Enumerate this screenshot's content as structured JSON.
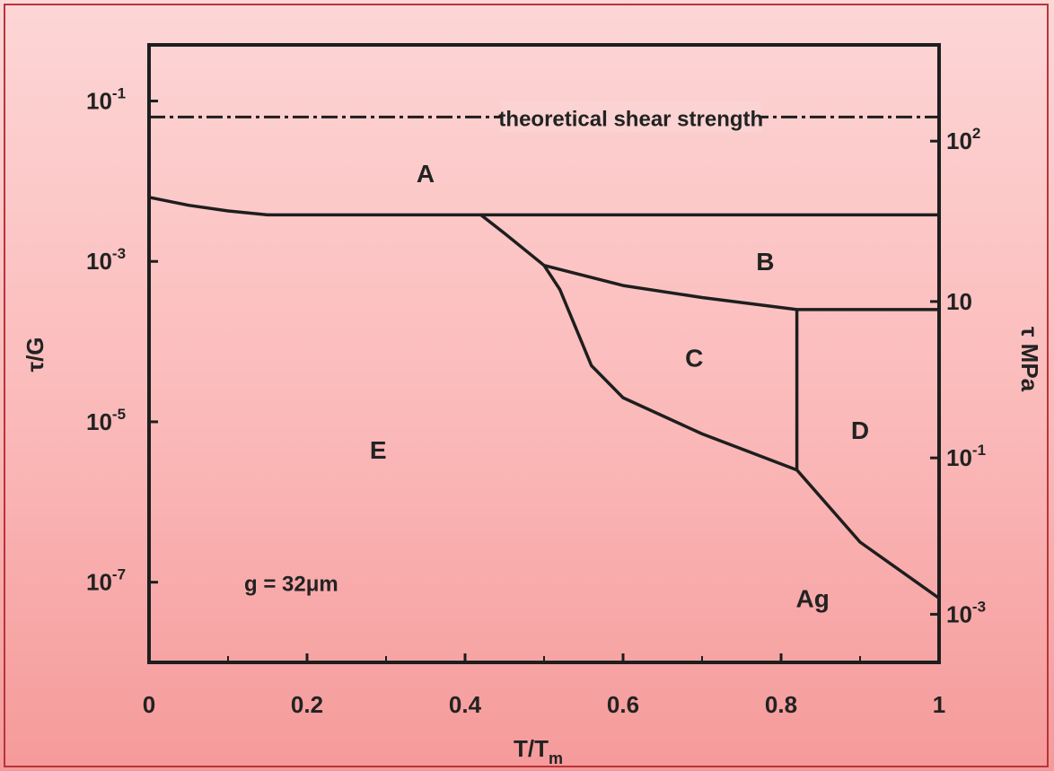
{
  "chart_data": {
    "type": "line",
    "title": "",
    "xlabel": "T/T",
    "xlabel_sub": "m",
    "ylabel_left": "τ/G",
    "ylabel_right": "τ MPa",
    "xlim": [
      0,
      1
    ],
    "ylim_log10": [
      -8,
      -0.3
    ],
    "x_ticks": [
      {
        "value": 0,
        "label": "0"
      },
      {
        "value": 0.2,
        "label": "0.2"
      },
      {
        "value": 0.4,
        "label": "0.4"
      },
      {
        "value": 0.6,
        "label": "0.6"
      },
      {
        "value": 0.8,
        "label": "0.8"
      },
      {
        "value": 1.0,
        "label": "1"
      }
    ],
    "left_ticks": [
      {
        "log10": -1,
        "base": "10",
        "exp": "-1"
      },
      {
        "log10": -3,
        "base": "10",
        "exp": "-3"
      },
      {
        "log10": -5,
        "base": "10",
        "exp": "-5"
      },
      {
        "log10": -7,
        "base": "10",
        "exp": "-7"
      }
    ],
    "right_ticks": [
      {
        "log10": -1.5,
        "base": "10",
        "exp": "2"
      },
      {
        "log10": -3.5,
        "base": "",
        "exp": "",
        "label": "10"
      },
      {
        "log10": -5.45,
        "base": "10",
        "exp": "-1"
      },
      {
        "log10": -7.4,
        "base": "10",
        "exp": "-3"
      }
    ],
    "series": [
      {
        "role": "theoretical-strength",
        "style": "dash-dot",
        "points": [
          [
            0,
            -1.2
          ],
          [
            1,
            -1.2
          ]
        ]
      },
      {
        "role": "boundary-A-lower",
        "style": "solid",
        "points": [
          [
            0,
            -2.2
          ],
          [
            0.05,
            -2.3
          ],
          [
            0.1,
            -2.37
          ],
          [
            0.15,
            -2.42
          ],
          [
            0.2,
            -2.42
          ],
          [
            1,
            -2.42
          ]
        ]
      },
      {
        "role": "boundary-B-lower",
        "style": "solid",
        "points": [
          [
            0.42,
            -2.42
          ],
          [
            0.45,
            -2.65
          ],
          [
            0.5,
            -3.05
          ],
          [
            0.6,
            -3.3
          ],
          [
            0.7,
            -3.45
          ],
          [
            0.82,
            -3.6
          ]
        ]
      },
      {
        "role": "boundary-D-upper",
        "style": "solid",
        "points": [
          [
            0.82,
            -3.6
          ],
          [
            1,
            -3.6
          ]
        ]
      },
      {
        "role": "boundary-C-lower",
        "style": "solid",
        "points": [
          [
            0.5,
            -3.05
          ],
          [
            0.52,
            -3.35
          ],
          [
            0.56,
            -4.3
          ],
          [
            0.6,
            -4.7
          ],
          [
            0.7,
            -5.15
          ],
          [
            0.82,
            -5.6
          ]
        ]
      },
      {
        "role": "boundary-C-D",
        "style": "solid",
        "points": [
          [
            0.82,
            -3.6
          ],
          [
            0.82,
            -5.6
          ]
        ]
      },
      {
        "role": "boundary-Ag",
        "style": "solid",
        "points": [
          [
            0.82,
            -5.6
          ],
          [
            0.9,
            -6.5
          ],
          [
            1.0,
            -7.2
          ]
        ]
      }
    ],
    "annotations": [
      {
        "text": "theoretical shear strength",
        "x": 0.61,
        "log10": -1.2,
        "kind": "line-label"
      },
      {
        "text": "A",
        "x": 0.35,
        "log10": -1.9,
        "kind": "region"
      },
      {
        "text": "B",
        "x": 0.78,
        "log10": -3.0,
        "kind": "region"
      },
      {
        "text": "C",
        "x": 0.69,
        "log10": -4.2,
        "kind": "region"
      },
      {
        "text": "D",
        "x": 0.9,
        "log10": -5.1,
        "kind": "region"
      },
      {
        "text": "E",
        "x": 0.29,
        "log10": -5.35,
        "kind": "region"
      },
      {
        "text": "g = 32μm",
        "x": 0.18,
        "log10": -7.0,
        "kind": "note"
      },
      {
        "text": "Ag",
        "x": 0.84,
        "log10": -7.2,
        "kind": "region"
      }
    ]
  },
  "colors": {
    "line": "#1e1e1e",
    "frame": "#b8343a"
  }
}
